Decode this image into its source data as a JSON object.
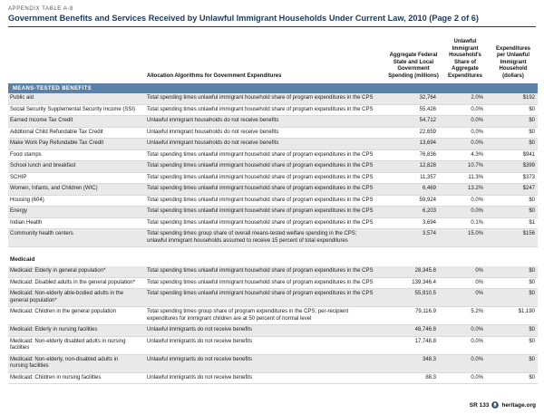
{
  "header": {
    "kicker": "APPENDIX TABLE A-8",
    "title": "Government Benefits and Services Received by Unlawful Immigrant Households Under Current Law, 2010 (Page 2 of 6)"
  },
  "colors": {
    "accent_blue": "#5b81a8",
    "title_navy": "#1b3a5e",
    "row_shade": "#e9e9e9"
  },
  "table": {
    "col_headers": {
      "allocation": "Allocation Algorithms for Government Expenditures",
      "spending": "Aggregate Federal State and Local Government Spending (millions)",
      "share": "Unlawful Immigrant Household's Share of Aggregate Expenditures",
      "per_household": "Expenditures per Unlawful Immigrant Household (dollars)"
    },
    "section": "MEANS-TESTED BENEFITS",
    "rows": [
      {
        "program": "Public aid",
        "allocation": "Total spending times unlawful immigrant household share of program expenditures in the CPS",
        "spending": "32,764",
        "share": "2.0%",
        "per_household": "$192"
      },
      {
        "program": "Social Security Supplemental Security Income (SSI)",
        "allocation": "Total spending times unlawful immigrant household share of program expenditures in the CPS",
        "spending": "55,426",
        "share": "0.0%",
        "per_household": "$0"
      },
      {
        "program": "Earned Income Tax Credit",
        "allocation": "Unlawful immigrant households do not receive benefits",
        "spending": "54,712",
        "share": "0.0%",
        "per_household": "$0"
      },
      {
        "program": "Additional Child Refundable Tax Credit",
        "allocation": "Unlawful immigrant households do not receive benefits",
        "spending": "22,659",
        "share": "0.0%",
        "per_household": "$0"
      },
      {
        "program": "Make Work Pay Refundable Tax Credit",
        "allocation": "Unlawful immigrant households do not receive benefits",
        "spending": "13,694",
        "share": "0.0%",
        "per_household": "$0"
      },
      {
        "program": "Food stamps",
        "allocation": "Total spending times unlawful immigrant household share of program expenditures in the CPS",
        "spending": "76,836",
        "share": "4.3%",
        "per_household": "$941"
      },
      {
        "program": "School lunch and breakfast",
        "allocation": "Total spending times unlawful immigrant household share of program expenditures in the CPS",
        "spending": "12,828",
        "share": "10.7%",
        "per_household": "$399"
      },
      {
        "program": "SCHIP",
        "allocation": "Total spending times unlawful immigrant household share of program expenditures in the CPS",
        "spending": "11,357",
        "share": "11.3%",
        "per_household": "$373"
      },
      {
        "program": "Women, Infants, and Children (WIC)",
        "allocation": "Total spending times unlawful immigrant household share of program expenditures in the CPS",
        "spending": "6,469",
        "share": "13.2%",
        "per_household": "$247"
      },
      {
        "program": "Housing (604)",
        "allocation": "Total spending times unlawful immigrant household share of program expenditures in the CPS",
        "spending": "59,924",
        "share": "0.0%",
        "per_household": "$0"
      },
      {
        "program": "Energy",
        "allocation": "Total spending times unlawful immigrant household share of program expenditures in the CPS",
        "spending": "6,203",
        "share": "0.0%",
        "per_household": "$0"
      },
      {
        "program": "Indian Health",
        "allocation": "Total spending times unlawful immigrant household share of program expenditures in the CPS",
        "spending": "3,694",
        "share": "0.1%",
        "per_household": "$1"
      },
      {
        "program": "Community health centers",
        "allocation": "Total spending times group share of overall means-tested welfare spending in the CPS; unlawful immigrant households assumed to receive 15 percent of total expenditures",
        "spending": "3,574",
        "share": "15.0%",
        "per_household": "$156"
      }
    ],
    "subsection": "Medicaid",
    "medicaid_rows": [
      {
        "program": "Medicaid: Elderly in general population*",
        "allocation": "Total spending times unlawful immigrant household share of program expenditures in the CPS",
        "spending": "28,345.8",
        "share": "0%",
        "per_household": "$0"
      },
      {
        "program": "Medicaid: Disabled adults in the general population*",
        "allocation": "Total spending times unlawful immigrant household share of program expenditures in the CPS",
        "spending": "139,346.4",
        "share": "0%",
        "per_household": "$0"
      },
      {
        "program": "Medicaid: Non-elderly able-bodied adults in the general population*",
        "allocation": "Total spending times unlawful immigrant household share of program expenditures in the CPS",
        "spending": "55,910.5",
        "share": "0%",
        "per_household": "$0"
      },
      {
        "program": "Medicaid: Children in the general population",
        "allocation": "Total spending times group share of program expenditures in the CPS; per-recipient expenditures for immigrant children are at 50 percent of normal level",
        "spending": "79,116.9",
        "share": "5.2%",
        "per_household": "$1,190"
      },
      {
        "program": "Medicaid: Elderly in nursing facilities",
        "allocation": "Unlawful immigrants do not receive benefits",
        "spending": "48,746.8",
        "share": "0.0%",
        "per_household": "$0"
      },
      {
        "program": "Medicaid: Non-elderly disabled adults in nursing facilities",
        "allocation": "Unlawful immigrants do not receive benefits",
        "spending": "17,748.8",
        "share": "0.0%",
        "per_household": "$0"
      },
      {
        "program": "Medicaid: Non-elderly, non-disabled adults in nursing facilities",
        "allocation": "Unlawful immigrants do not receive benefits",
        "spending": "348.3",
        "share": "0.0%",
        "per_household": "$0"
      },
      {
        "program": "Medicaid: Children in nursing facilities",
        "allocation": "Unlawful immigrants do not receive benefits",
        "spending": "88.3",
        "share": "0.0%",
        "per_household": "$0"
      }
    ]
  },
  "footer": {
    "report": "SR 133",
    "site": "heritage.org"
  }
}
